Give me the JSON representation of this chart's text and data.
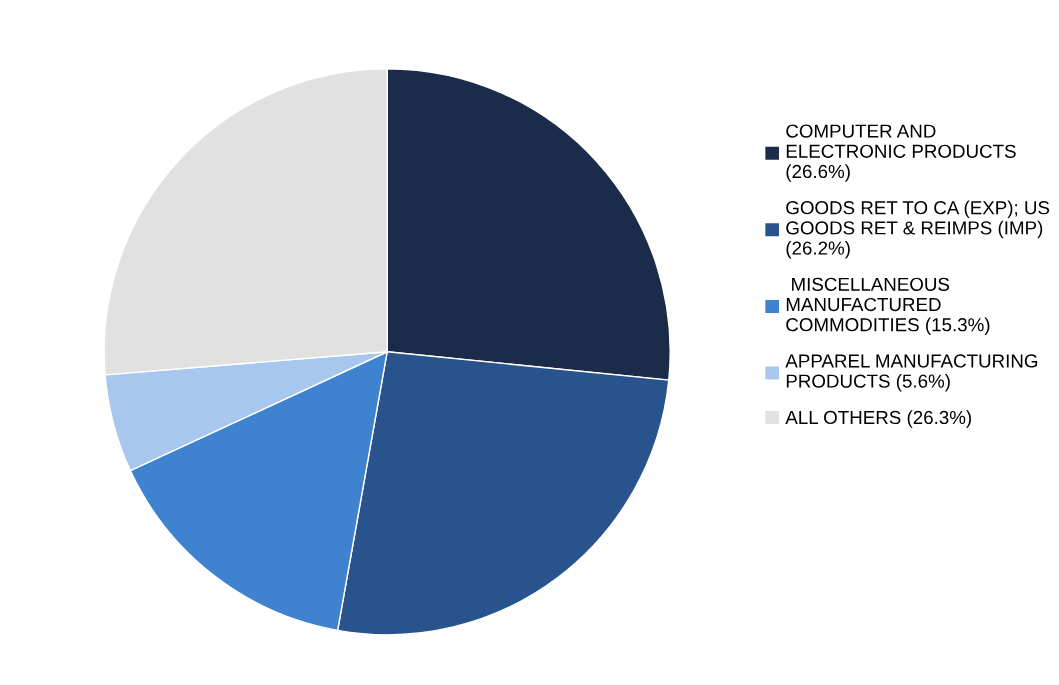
{
  "chart_data": {
    "type": "pie",
    "categories": [
      "COMPUTER AND\nELECTRONIC PRODUCTS\n(26.6%)",
      "GOODS RET TO CA (EXP); US\nGOODS RET & REIMPS (IMP)\n(26.2%)",
      " MISCELLANEOUS\nMANUFACTURED\nCOMMODITIES (15.3%)",
      "APPAREL MANUFACTURING\nPRODUCTS (5.6%)",
      "ALL OTHERS (26.3%)"
    ],
    "values": [
      26.6,
      26.2,
      15.3,
      5.6,
      26.3
    ],
    "colors": [
      "#1b2b4a",
      "#28538c",
      "#3f82d0",
      "#a8c7ee",
      "#e1e1e1"
    ],
    "legend": "right"
  }
}
